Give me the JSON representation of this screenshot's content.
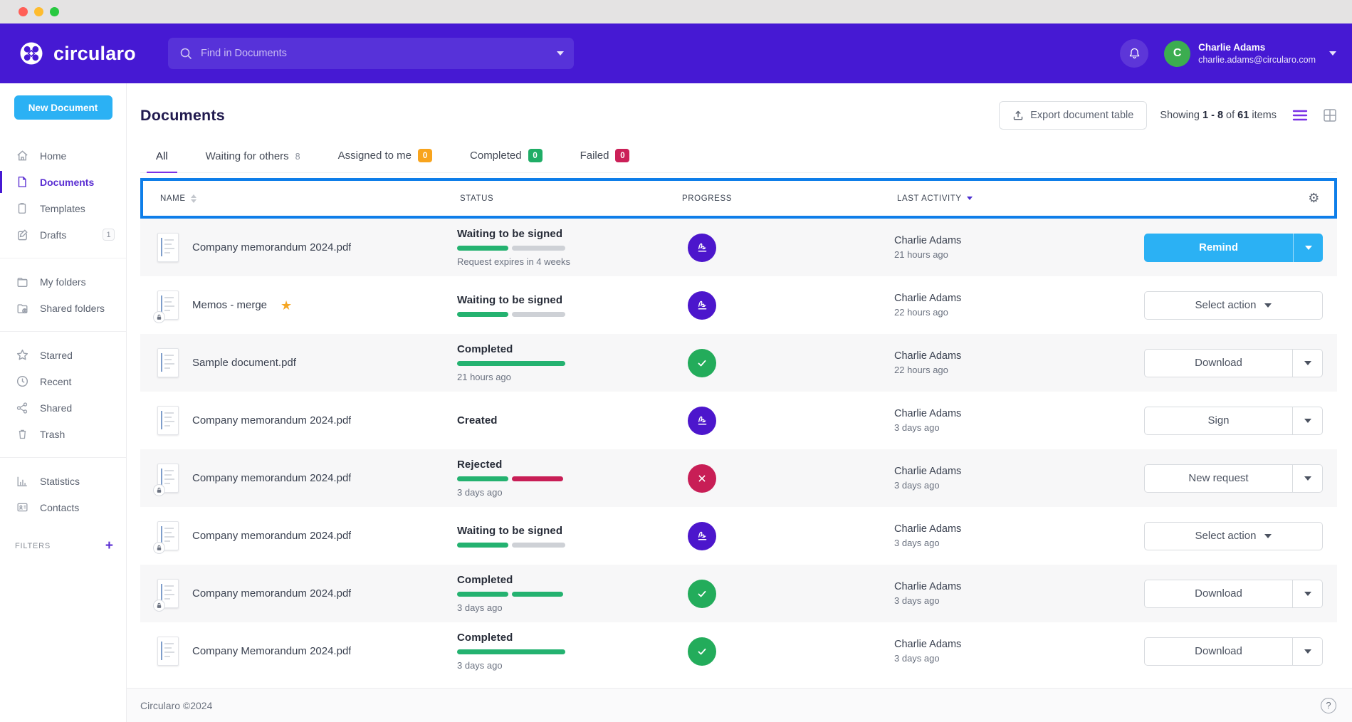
{
  "colors": {
    "topbar_purple": "#4619d3",
    "accent_purple": "#5a2ed2",
    "primary_blue": "#2bb1f4",
    "outline_blue": "#0e7ee9",
    "success_green": "#24b270",
    "danger_crimson": "#c81e56",
    "warning_orange": "#f8a41d",
    "avatar_green": "#3cad50"
  },
  "topbar": {
    "brand": "circularo",
    "search": {
      "placeholder": "Find in Documents"
    },
    "user": {
      "name": "Charlie Adams",
      "email": "charlie.adams@circularo.com",
      "avatar_initial": "C"
    }
  },
  "sidebar": {
    "new_document_label": "New Document",
    "sections": [
      {
        "items": [
          {
            "icon": "home-icon",
            "label": "Home"
          },
          {
            "icon": "document-icon",
            "label": "Documents",
            "active": true
          },
          {
            "icon": "template-icon",
            "label": "Templates"
          },
          {
            "icon": "draft-icon",
            "label": "Drafts",
            "badge": "1"
          }
        ]
      },
      {
        "items": [
          {
            "icon": "folder-icon",
            "label": "My folders"
          },
          {
            "icon": "shared-folder-icon",
            "label": "Shared folders"
          }
        ]
      },
      {
        "items": [
          {
            "icon": "star-icon",
            "label": "Starred"
          },
          {
            "icon": "clock-icon",
            "label": "Recent"
          },
          {
            "icon": "share-icon",
            "label": "Shared"
          },
          {
            "icon": "trash-icon",
            "label": "Trash"
          }
        ]
      },
      {
        "items": [
          {
            "icon": "statistics-icon",
            "label": "Statistics"
          },
          {
            "icon": "contacts-icon",
            "label": "Contacts"
          }
        ]
      }
    ],
    "filters_label": "FILTERS",
    "filters_add": "+"
  },
  "page": {
    "title": "Documents",
    "export_button": "Export document table",
    "showing": {
      "prefix": "Showing",
      "range": "1 - 8",
      "of": "of",
      "total": "61",
      "suffix": "items"
    }
  },
  "tabs": [
    {
      "label": "All",
      "active": true
    },
    {
      "label": "Waiting for others",
      "count": "8",
      "count_style": "plain"
    },
    {
      "label": "Assigned to me",
      "count": "0",
      "count_style": "orange"
    },
    {
      "label": "Completed",
      "count": "0",
      "count_style": "green"
    },
    {
      "label": "Failed",
      "count": "0",
      "count_style": "red"
    }
  ],
  "table": {
    "columns": [
      "NAME",
      "STATUS",
      "PROGRESS",
      "LAST ACTIVITY"
    ],
    "rows": [
      {
        "name": "Company memorandum 2024.pdf",
        "locked": false,
        "starred": false,
        "status": "Waiting to be signed",
        "bar": "half-green",
        "subtext": "Request expires in 4 weeks",
        "progress_icon": "signature-icon",
        "actor": "Charlie Adams",
        "time": "21 hours ago",
        "action": {
          "label": "Remind",
          "style": "primary"
        }
      },
      {
        "name": "Memos - merge",
        "locked": true,
        "starred": true,
        "status": "Waiting to be signed",
        "bar": "half-green",
        "subtext": "",
        "progress_icon": "signature-icon",
        "actor": "Charlie Adams",
        "time": "22 hours ago",
        "action": {
          "label": "Select action",
          "style": "select"
        }
      },
      {
        "name": "Sample document.pdf",
        "locked": false,
        "starred": false,
        "status": "Completed",
        "bar": "full-green",
        "subtext": "21 hours ago",
        "progress_icon": "check-icon",
        "actor": "Charlie Adams",
        "time": "22 hours ago",
        "action": {
          "label": "Download",
          "style": "split"
        }
      },
      {
        "name": "Company memorandum 2024.pdf",
        "locked": false,
        "starred": false,
        "status": "Created",
        "bar": "none",
        "subtext": "",
        "progress_icon": "signature-icon",
        "actor": "Charlie Adams",
        "time": "3 days ago",
        "action": {
          "label": "Sign",
          "style": "split"
        }
      },
      {
        "name": "Company memorandum 2024.pdf",
        "locked": true,
        "starred": false,
        "status": "Rejected",
        "bar": "green-red",
        "subtext": "3 days ago",
        "progress_icon": "cross-icon",
        "actor": "Charlie Adams",
        "time": "3 days ago",
        "action": {
          "label": "New request",
          "style": "split"
        }
      },
      {
        "name": "Company memorandum 2024.pdf",
        "locked": true,
        "starred": false,
        "status": "Waiting to be signed",
        "bar": "half-green",
        "subtext": "",
        "progress_icon": "signature-icon",
        "actor": "Charlie Adams",
        "time": "3 days ago",
        "action": {
          "label": "Select action",
          "style": "select"
        }
      },
      {
        "name": "Company memorandum 2024.pdf",
        "locked": true,
        "starred": false,
        "status": "Completed",
        "bar": "green-green",
        "subtext": "3 days ago",
        "progress_icon": "check-icon",
        "actor": "Charlie Adams",
        "time": "3 days ago",
        "action": {
          "label": "Download",
          "style": "split"
        }
      },
      {
        "name": "Company Memorandum 2024.pdf",
        "locked": false,
        "starred": false,
        "status": "Completed",
        "bar": "full-green",
        "subtext": "3 days ago",
        "progress_icon": "check-icon",
        "actor": "Charlie Adams",
        "time": "3 days ago",
        "action": {
          "label": "Download",
          "style": "split"
        }
      }
    ]
  },
  "footer": {
    "copyright": "Circularo ©2024",
    "help": "?"
  }
}
